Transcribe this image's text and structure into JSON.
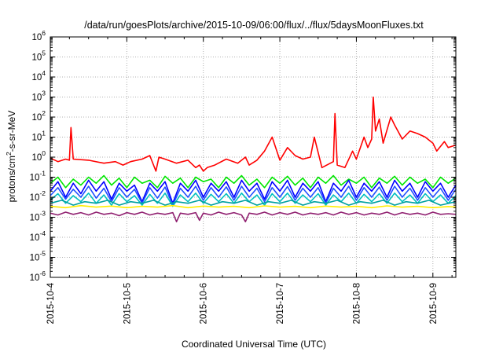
{
  "chart_data": {
    "type": "line",
    "title": "/data/run/goesPlots/archive/2015-10-09/06:00/flux/../flux/5daysMoonFluxes.txt",
    "xlabel": "Coordinated Universal Time (UTC)",
    "ylabel": {
      "pre": "protons/cm",
      "sup": "2",
      "post": "-s-sr-MeV"
    },
    "yscale": "log",
    "ylim_exponents": [
      -6,
      6
    ],
    "y_tick_labels": [
      {
        "base": "10",
        "exp": "6"
      },
      {
        "base": "10",
        "exp": "5"
      },
      {
        "base": "10",
        "exp": "4"
      },
      {
        "base": "10",
        "exp": "3"
      },
      {
        "base": "10",
        "exp": "2"
      },
      {
        "base": "10",
        "exp": "1"
      },
      {
        "base": "10",
        "exp": "0"
      },
      {
        "base": "10",
        "exp": "-1"
      },
      {
        "base": "10",
        "exp": "-2"
      },
      {
        "base": "10",
        "exp": "-3"
      },
      {
        "base": "10",
        "exp": "-4"
      },
      {
        "base": "10",
        "exp": "-5"
      },
      {
        "base": "10",
        "exp": "-6"
      }
    ],
    "xlim_days": [
      0,
      5.3
    ],
    "x_ticks": [
      "2015-10-4",
      "2015-10-5",
      "2015-10-6",
      "2015-10-7",
      "2015-10-8",
      "2015-10-9"
    ],
    "grid": true,
    "colors": {
      "red": "#ff0000",
      "green": "#00e600",
      "blue": "#0000ff",
      "royal": "#2050ff",
      "cyan": "#00c0c0",
      "teal": "#00a0a0",
      "yellow": "#ffee00",
      "purple": "#902070",
      "grid": "#b0b0b0"
    },
    "series": [
      {
        "color": "red",
        "x": [
          0,
          0.1,
          0.2,
          0.25,
          0.27,
          0.3,
          0.5,
          0.7,
          0.85,
          0.95,
          1.05,
          1.2,
          1.3,
          1.38,
          1.42,
          1.5,
          1.65,
          1.8,
          1.9,
          1.95,
          2.0,
          2.05,
          2.15,
          2.3,
          2.45,
          2.55,
          2.6,
          2.7,
          2.8,
          2.9,
          3.0,
          3.1,
          3.2,
          3.3,
          3.4,
          3.45,
          3.55,
          3.7,
          3.72,
          3.75,
          3.85,
          3.95,
          4.0,
          4.1,
          4.15,
          4.2,
          4.22,
          4.25,
          4.3,
          4.35,
          4.45,
          4.5,
          4.6,
          4.7,
          4.8,
          4.9,
          5.0,
          5.05,
          5.15,
          5.2,
          5.3
        ],
        "y": [
          0.9,
          0.6,
          0.8,
          0.7,
          30,
          0.8,
          0.7,
          0.5,
          0.6,
          0.4,
          0.6,
          0.8,
          1.2,
          0.2,
          1.0,
          0.8,
          0.5,
          0.7,
          0.3,
          0.4,
          0.2,
          0.3,
          0.4,
          0.8,
          0.5,
          1.0,
          0.4,
          0.7,
          2.0,
          10,
          0.7,
          3,
          1.2,
          0.8,
          1.0,
          10,
          0.3,
          0.6,
          150,
          0.4,
          0.3,
          2,
          0.8,
          10,
          3,
          8,
          1000,
          20,
          80,
          5,
          100,
          40,
          8,
          20,
          15,
          10,
          5,
          2,
          6,
          3,
          4
        ]
      },
      {
        "color": "green",
        "x": [
          0,
          0.1,
          0.2,
          0.3,
          0.4,
          0.5,
          0.6,
          0.7,
          0.8,
          0.9,
          1.0,
          1.1,
          1.2,
          1.3,
          1.4,
          1.5,
          1.6,
          1.7,
          1.8,
          1.9,
          2.0,
          2.1,
          2.2,
          2.3,
          2.4,
          2.5,
          2.6,
          2.7,
          2.8,
          2.9,
          3.0,
          3.1,
          3.2,
          3.3,
          3.4,
          3.5,
          3.6,
          3.7,
          3.8,
          3.9,
          4.0,
          4.1,
          4.2,
          4.3,
          4.4,
          4.5,
          4.6,
          4.7,
          4.8,
          4.9,
          5.0,
          5.1,
          5.2,
          5.3
        ],
        "y": [
          0.05,
          0.1,
          0.03,
          0.08,
          0.04,
          0.1,
          0.05,
          0.12,
          0.04,
          0.09,
          0.03,
          0.1,
          0.05,
          0.07,
          0.03,
          0.11,
          0.05,
          0.09,
          0.03,
          0.1,
          0.06,
          0.08,
          0.03,
          0.1,
          0.05,
          0.12,
          0.04,
          0.08,
          0.03,
          0.1,
          0.05,
          0.11,
          0.04,
          0.09,
          0.03,
          0.1,
          0.05,
          0.12,
          0.04,
          0.08,
          0.05,
          0.1,
          0.03,
          0.09,
          0.05,
          0.11,
          0.04,
          0.1,
          0.05,
          0.08,
          0.03,
          0.1,
          0.05,
          0.09
        ]
      },
      {
        "color": "blue",
        "x": [
          0,
          0.1,
          0.2,
          0.3,
          0.4,
          0.5,
          0.6,
          0.7,
          0.8,
          0.9,
          1.0,
          1.1,
          1.2,
          1.3,
          1.4,
          1.5,
          1.6,
          1.7,
          1.8,
          1.9,
          2.0,
          2.1,
          2.2,
          2.3,
          2.4,
          2.5,
          2.6,
          2.7,
          2.8,
          2.9,
          3.0,
          3.1,
          3.2,
          3.3,
          3.4,
          3.5,
          3.6,
          3.7,
          3.8,
          3.9,
          4.0,
          4.1,
          4.2,
          4.3,
          4.4,
          4.5,
          4.6,
          4.7,
          4.8,
          4.9,
          5.0,
          5.1,
          5.2,
          5.3
        ],
        "y": [
          0.02,
          0.06,
          0.01,
          0.05,
          0.015,
          0.07,
          0.02,
          0.06,
          0.008,
          0.05,
          0.02,
          0.04,
          0.006,
          0.05,
          0.02,
          0.06,
          0.005,
          0.05,
          0.02,
          0.07,
          0.01,
          0.05,
          0.02,
          0.06,
          0.01,
          0.07,
          0.02,
          0.05,
          0.008,
          0.06,
          0.02,
          0.07,
          0.01,
          0.05,
          0.02,
          0.06,
          0.006,
          0.05,
          0.02,
          0.07,
          0.01,
          0.05,
          0.02,
          0.06,
          0.01,
          0.07,
          0.02,
          0.05,
          0.01,
          0.06,
          0.02,
          0.05,
          0.01,
          0.04
        ]
      },
      {
        "color": "royal",
        "x": [
          0,
          0.1,
          0.2,
          0.3,
          0.4,
          0.5,
          0.6,
          0.7,
          0.8,
          0.9,
          1.0,
          1.1,
          1.2,
          1.3,
          1.4,
          1.5,
          1.6,
          1.7,
          1.8,
          1.9,
          2.0,
          2.1,
          2.2,
          2.3,
          2.4,
          2.5,
          2.6,
          2.7,
          2.8,
          2.9,
          3.0,
          3.1,
          3.2,
          3.3,
          3.4,
          3.5,
          3.6,
          3.7,
          3.8,
          3.9,
          4.0,
          4.1,
          4.2,
          4.3,
          4.4,
          4.5,
          4.6,
          4.7,
          4.8,
          4.9,
          5.0,
          5.1,
          5.2,
          5.3
        ],
        "y": [
          0.012,
          0.03,
          0.008,
          0.025,
          0.01,
          0.035,
          0.009,
          0.028,
          0.006,
          0.03,
          0.01,
          0.025,
          0.005,
          0.03,
          0.009,
          0.032,
          0.004,
          0.028,
          0.01,
          0.035,
          0.007,
          0.03,
          0.01,
          0.033,
          0.007,
          0.035,
          0.01,
          0.028,
          0.006,
          0.03,
          0.01,
          0.034,
          0.007,
          0.028,
          0.01,
          0.03,
          0.005,
          0.028,
          0.01,
          0.035,
          0.007,
          0.03,
          0.01,
          0.032,
          0.007,
          0.035,
          0.01,
          0.028,
          0.007,
          0.03,
          0.01,
          0.028,
          0.007,
          0.025
        ]
      },
      {
        "color": "cyan",
        "x": [
          0,
          0.1,
          0.2,
          0.3,
          0.4,
          0.5,
          0.6,
          0.7,
          0.8,
          0.9,
          1.0,
          1.1,
          1.2,
          1.3,
          1.4,
          1.5,
          1.6,
          1.7,
          1.8,
          1.9,
          2.0,
          2.1,
          2.2,
          2.3,
          2.4,
          2.5,
          2.6,
          2.7,
          2.8,
          2.9,
          3.0,
          3.1,
          3.2,
          3.3,
          3.4,
          3.5,
          3.6,
          3.7,
          3.8,
          3.9,
          4.0,
          4.1,
          4.2,
          4.3,
          4.4,
          4.5,
          4.6,
          4.7,
          4.8,
          4.9,
          5.0,
          5.1,
          5.2,
          5.3
        ],
        "y": [
          0.007,
          0.015,
          0.005,
          0.012,
          0.006,
          0.016,
          0.005,
          0.013,
          0.004,
          0.015,
          0.006,
          0.012,
          0.004,
          0.014,
          0.005,
          0.016,
          0.0035,
          0.013,
          0.006,
          0.016,
          0.005,
          0.014,
          0.006,
          0.015,
          0.005,
          0.016,
          0.006,
          0.013,
          0.004,
          0.015,
          0.006,
          0.016,
          0.005,
          0.013,
          0.006,
          0.015,
          0.004,
          0.013,
          0.006,
          0.016,
          0.005,
          0.014,
          0.006,
          0.015,
          0.005,
          0.016,
          0.006,
          0.013,
          0.005,
          0.015,
          0.006,
          0.013,
          0.005,
          0.012
        ]
      },
      {
        "color": "teal",
        "x": [
          0,
          0.15,
          0.3,
          0.45,
          0.6,
          0.75,
          0.9,
          1.05,
          1.2,
          1.35,
          1.5,
          1.65,
          1.8,
          1.95,
          2.1,
          2.25,
          2.4,
          2.55,
          2.7,
          2.85,
          3.0,
          3.15,
          3.3,
          3.45,
          3.6,
          3.75,
          3.9,
          4.05,
          4.2,
          4.35,
          4.5,
          4.65,
          4.8,
          4.95,
          5.1,
          5.3
        ],
        "y": [
          0.005,
          0.007,
          0.004,
          0.006,
          0.005,
          0.007,
          0.004,
          0.006,
          0.005,
          0.007,
          0.004,
          0.006,
          0.005,
          0.007,
          0.004,
          0.006,
          0.005,
          0.007,
          0.004,
          0.006,
          0.005,
          0.007,
          0.004,
          0.006,
          0.005,
          0.007,
          0.004,
          0.006,
          0.005,
          0.007,
          0.004,
          0.006,
          0.005,
          0.007,
          0.004,
          0.006
        ]
      },
      {
        "color": "yellow",
        "x": [
          0,
          0.2,
          0.4,
          0.6,
          0.8,
          1.0,
          1.2,
          1.4,
          1.6,
          1.8,
          2.0,
          2.2,
          2.4,
          2.6,
          2.8,
          3.0,
          3.2,
          3.4,
          3.6,
          3.8,
          4.0,
          4.2,
          4.4,
          4.6,
          4.8,
          5.0,
          5.2,
          5.3
        ],
        "y": [
          0.0035,
          0.003,
          0.0038,
          0.0032,
          0.0036,
          0.003,
          0.0035,
          0.0032,
          0.0038,
          0.003,
          0.0036,
          0.0032,
          0.0035,
          0.003,
          0.0037,
          0.0032,
          0.0035,
          0.003,
          0.0036,
          0.0032,
          0.0035,
          0.003,
          0.0037,
          0.0032,
          0.0035,
          0.003,
          0.0034,
          0.0032
        ]
      },
      {
        "color": "purple",
        "x": [
          0,
          0.1,
          0.2,
          0.3,
          0.4,
          0.5,
          0.6,
          0.7,
          0.8,
          0.9,
          1.0,
          1.1,
          1.2,
          1.3,
          1.4,
          1.5,
          1.6,
          1.65,
          1.7,
          1.8,
          1.9,
          1.95,
          2.0,
          2.1,
          2.2,
          2.3,
          2.4,
          2.5,
          2.55,
          2.6,
          2.7,
          2.8,
          2.9,
          3.0,
          3.1,
          3.2,
          3.3,
          3.4,
          3.5,
          3.6,
          3.7,
          3.8,
          3.9,
          4.0,
          4.1,
          4.2,
          4.3,
          4.4,
          4.5,
          4.6,
          4.7,
          4.8,
          4.9,
          5.0,
          5.1,
          5.2,
          5.3
        ],
        "y": [
          0.0016,
          0.0013,
          0.0018,
          0.0014,
          0.0017,
          0.0013,
          0.0018,
          0.0014,
          0.0016,
          0.0012,
          0.0017,
          0.0014,
          0.0018,
          0.0013,
          0.0016,
          0.0014,
          0.0017,
          0.0006,
          0.0016,
          0.0014,
          0.0017,
          0.0007,
          0.0016,
          0.0013,
          0.0018,
          0.0014,
          0.0017,
          0.0013,
          0.0006,
          0.0016,
          0.0014,
          0.0018,
          0.0013,
          0.0017,
          0.0014,
          0.0018,
          0.0013,
          0.0016,
          0.0014,
          0.0017,
          0.0013,
          0.0018,
          0.0014,
          0.0017,
          0.0013,
          0.0016,
          0.0014,
          0.0018,
          0.0013,
          0.0017,
          0.0014,
          0.0016,
          0.0013,
          0.0018,
          0.0014,
          0.0015,
          0.0014
        ]
      }
    ]
  }
}
